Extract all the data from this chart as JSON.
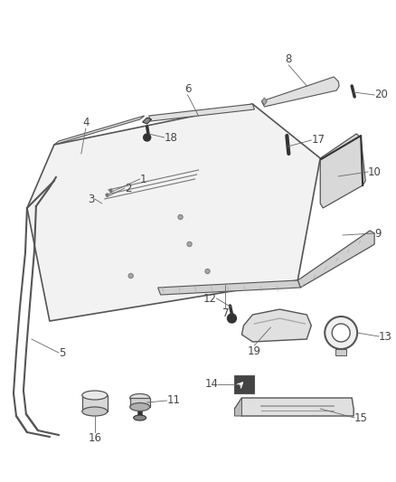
{
  "bg_color": "#ffffff",
  "line_color": "#555555",
  "dark_color": "#333333",
  "label_color": "#444444",
  "panel_face": "#f0f0f0",
  "strip_face": "#d8d8d8",
  "dark_strip": "#888888",
  "figsize": [
    4.38,
    5.33
  ],
  "dpi": 100,
  "parts_labels": [
    "1",
    "2",
    "3",
    "4",
    "5",
    "6",
    "7",
    "8",
    "9",
    "10",
    "11",
    "12",
    "13",
    "14",
    "15",
    "16",
    "17",
    "18",
    "19",
    "20"
  ]
}
